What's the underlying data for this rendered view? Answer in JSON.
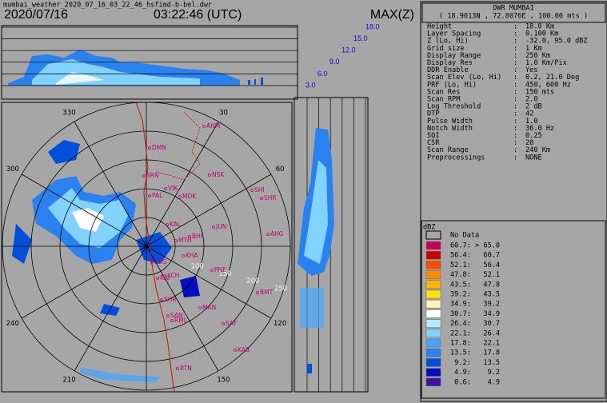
{
  "header": {
    "filename": "mumbai_weather_2020_07_16_03_22_46_hsfimd-b-bel.dwr",
    "date": "2020/07/16",
    "time": "03:22:46 (UTC)",
    "product": "MAX(Z)"
  },
  "station": {
    "name": "DWR MUMBAI",
    "coords": "( 18.9013N , 72.8076E , 100.00 mts )"
  },
  "params": {
    "separator": ":",
    "rows": [
      [
        "Height",
        "18.0 Km"
      ],
      [
        "Layer Spacing",
        "0.100 Km"
      ],
      [
        "Z (Lo, Hi)",
        "-32.0, 95.0 dBZ"
      ],
      [
        "Grid size",
        "1 Km"
      ],
      [
        "Display Range",
        "250 Km"
      ],
      [
        "Display Res",
        "1.0 Km/Pix"
      ],
      [
        "DDR Enable",
        "Yes"
      ],
      [
        "Scan Elev (Lo, Hi)",
        "0.2, 21.0 Deg"
      ],
      [
        "PRF (Lo, Hi)",
        "450, 600 Hz"
      ],
      [
        "Scan Res",
        "150 mts"
      ],
      [
        "Scan RPM",
        "2.0"
      ],
      [
        "Log Threshold",
        "2 dB"
      ],
      [
        "DTP",
        "42"
      ],
      [
        "Pulse Width",
        "1.0"
      ],
      [
        "Notch Width",
        "36.0 Hz"
      ],
      [
        "SQI",
        "0.25"
      ],
      [
        "CSR",
        "20"
      ],
      [
        "Scan Range",
        "240 Km"
      ],
      [
        "Preprocessings",
        "NONE"
      ]
    ]
  },
  "legend": {
    "title": "dBZ",
    "no_data": "No Data",
    "entries": [
      {
        "label": "60.7: > 65.0",
        "color": "#c8005a"
      },
      {
        "label": "56.4:   60.7",
        "color": "#d00000"
      },
      {
        "label": "52.1:   56.4",
        "color": "#ff4a00"
      },
      {
        "label": "47.8:   52.1",
        "color": "#ff8a00"
      },
      {
        "label": "43.5:   47.8",
        "color": "#ffb400"
      },
      {
        "label": "39.2:   43.5",
        "color": "#ffe400"
      },
      {
        "label": "34.9:   39.2",
        "color": "#fff4b8"
      },
      {
        "label": "30.7:   34.9",
        "color": "#ffffff"
      },
      {
        "label": "26.4:   30.7",
        "color": "#b4ecff"
      },
      {
        "label": "22.1:   26.4",
        "color": "#82d2ff"
      },
      {
        "label": "17.8:   22.1",
        "color": "#46a6ff"
      },
      {
        "label": "13.5:   17.8",
        "color": "#2a82f0"
      },
      {
        "label": " 9.2:   13.5",
        "color": "#0050dc"
      },
      {
        "label": " 4.9:    9.2",
        "color": "#0010c0"
      },
      {
        "label": " 0.6:    4.9",
        "color": "#4010a0"
      }
    ]
  },
  "heights": [
    "3.0",
    "6.0",
    "9.0",
    "12.0",
    "15.0",
    "18.0"
  ],
  "map": {
    "azimuths": [
      30,
      60,
      120,
      150,
      210,
      240,
      300,
      330
    ],
    "ranges": [
      "100",
      "150",
      "200",
      "250"
    ],
    "cities": [
      "AHM",
      "DMN",
      "SRN",
      "VIK",
      "NSK",
      "SHI",
      "SHR",
      "PAL",
      "MDK",
      "KAL",
      "JUN",
      "AHG",
      "BHI",
      "MTH",
      "KHA",
      "PNE",
      "KCH",
      "SRG",
      "RAI",
      "SHR",
      "SAN",
      "RML",
      "MAN",
      "SAT",
      "BMT",
      "KAB",
      "RTN"
    ]
  }
}
